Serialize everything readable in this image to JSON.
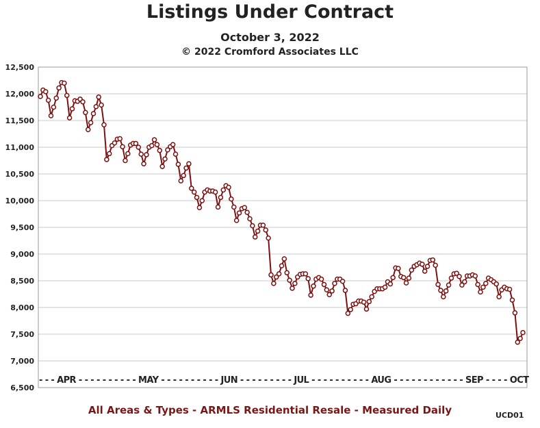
{
  "chart_data": {
    "type": "line",
    "title": "Listings Under Contract",
    "subtitle": "October 3, 2022",
    "copyright": "© 2022 Cromford Associates LLC",
    "footer": "All Areas & Types - ARMLS Residential Resale - Measured Daily",
    "code": "UCD01",
    "ylim": [
      6500,
      12500
    ],
    "y_ticks": [
      6500,
      7000,
      7500,
      8000,
      8500,
      9000,
      9500,
      10000,
      10500,
      11000,
      11500,
      12000,
      12500
    ],
    "y_tick_labels": [
      "6,500",
      "7,000",
      "7,500",
      "8,000",
      "8,500",
      "9,000",
      "9,500",
      "10,000",
      "10,500",
      "11,000",
      "11,500",
      "12,000",
      "12,500"
    ],
    "x_axis_label_text": "- - - APR - - - - - - - - - - MAY - - - - - - - - - - JUN - - - - - - - - - JUL - - - - - - - - - - AUG - - - - - - - - - - - - SEP - - - - OCT",
    "months": [
      "APR",
      "MAY",
      "JUN",
      "JUL",
      "AUG",
      "SEP",
      "OCT"
    ],
    "grid": true,
    "line_color": "#7a1010",
    "series": [
      {
        "values": [
          11950,
          12070,
          12040,
          11880,
          11590,
          11750,
          11920,
          12110,
          12210,
          12200,
          11970,
          11550,
          11720,
          11870,
          11860,
          11900,
          11850,
          11650,
          11330,
          11460,
          11630,
          11760,
          11940,
          11790,
          11420,
          10770,
          10880,
          11030,
          11080,
          11150,
          11160,
          11010,
          10750,
          10880,
          11040,
          11070,
          11070,
          11000,
          10870,
          10690,
          10860,
          11000,
          11030,
          11140,
          11050,
          10940,
          10640,
          10780,
          10950,
          11010,
          11050,
          10870,
          10680,
          10370,
          10470,
          10610,
          10690,
          10230,
          10160,
          10060,
          9870,
          10000,
          10160,
          10200,
          10180,
          10180,
          10160,
          9880,
          10060,
          10200,
          10280,
          10250,
          10030,
          9880,
          9630,
          9770,
          9850,
          9870,
          9780,
          9660,
          9530,
          9320,
          9430,
          9540,
          9540,
          9450,
          9300,
          8610,
          8450,
          8570,
          8630,
          8780,
          8910,
          8650,
          8510,
          8360,
          8450,
          8570,
          8620,
          8630,
          8630,
          8540,
          8230,
          8400,
          8530,
          8560,
          8530,
          8430,
          8330,
          8240,
          8310,
          8450,
          8530,
          8530,
          8490,
          8320,
          7890,
          7960,
          8060,
          8070,
          8120,
          8120,
          8100,
          7970,
          8110,
          8200,
          8300,
          8350,
          8350,
          8350,
          8380,
          8480,
          8440,
          8560,
          8740,
          8730,
          8580,
          8560,
          8460,
          8550,
          8700,
          8770,
          8800,
          8830,
          8810,
          8680,
          8770,
          8880,
          8890,
          8790,
          8430,
          8320,
          8200,
          8310,
          8420,
          8550,
          8630,
          8640,
          8580,
          8420,
          8480,
          8590,
          8590,
          8610,
          8590,
          8430,
          8290,
          8380,
          8450,
          8550,
          8520,
          8480,
          8440,
          8200,
          8330,
          8380,
          8350,
          8340,
          8140,
          7900,
          7350,
          7420,
          7530
        ]
      }
    ]
  }
}
